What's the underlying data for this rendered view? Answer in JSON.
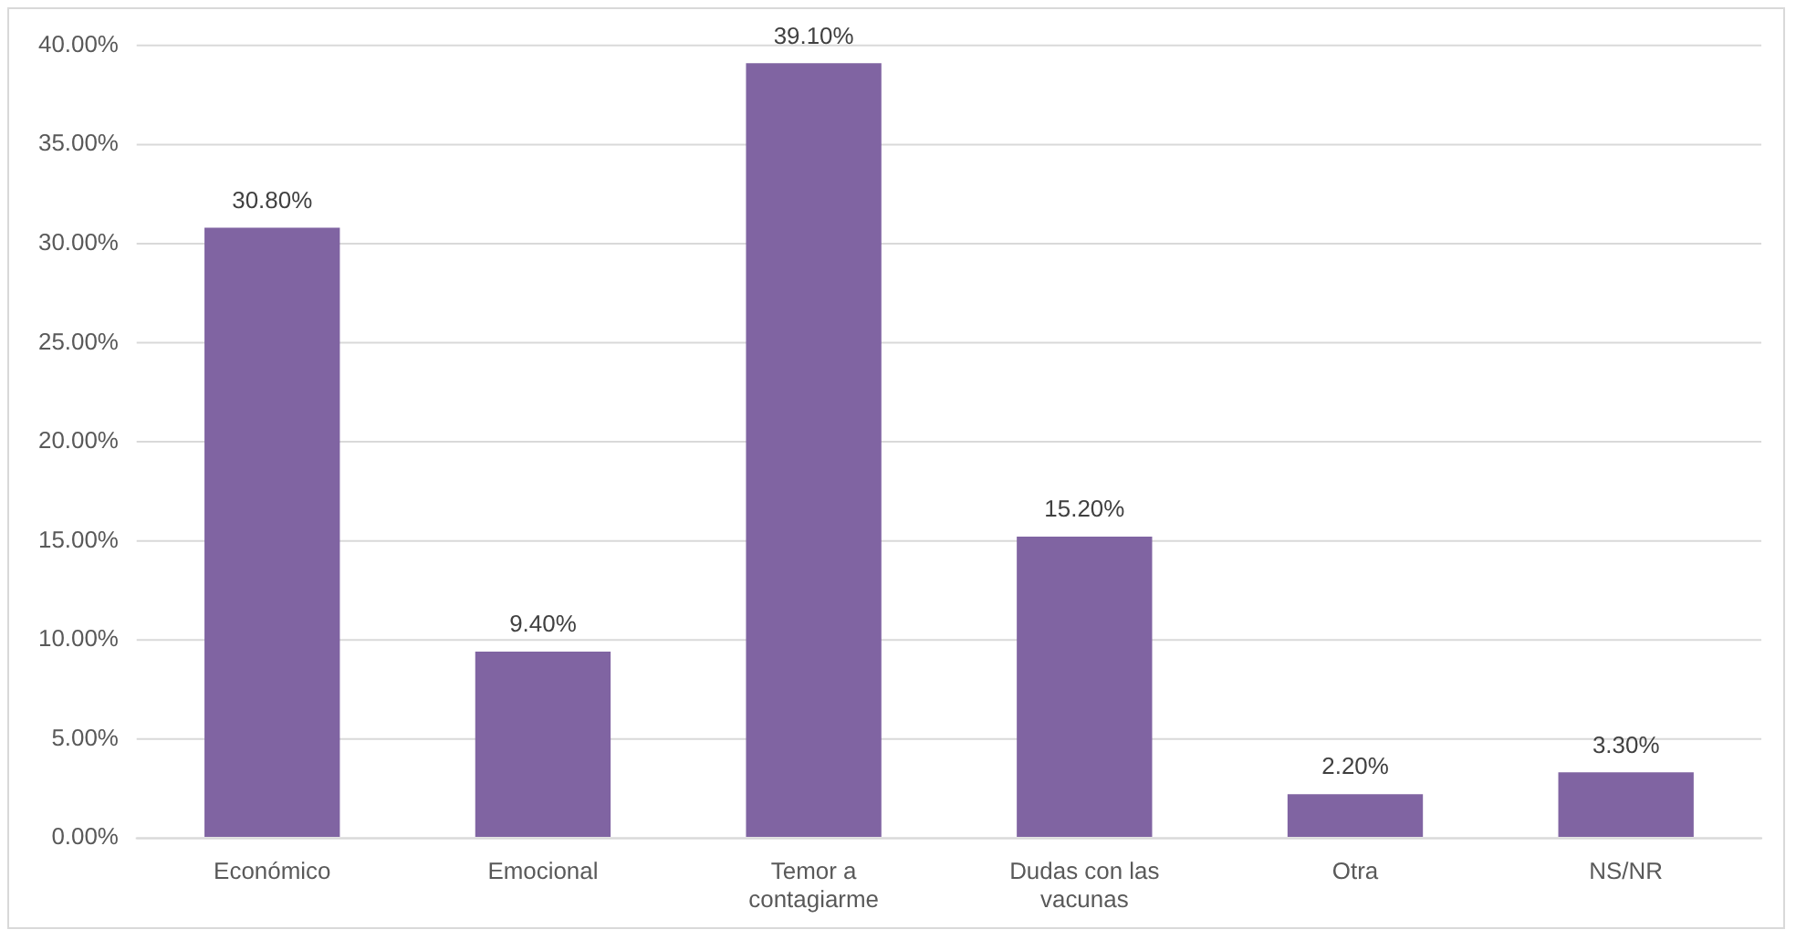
{
  "chart_data": {
    "type": "bar",
    "categories": [
      "Económico",
      "Emocional",
      "Temor a contagiarme",
      "Dudas con las vacunas",
      "Otra",
      "NS/NR"
    ],
    "values": [
      30.8,
      9.4,
      39.1,
      15.2,
      2.2,
      3.3
    ],
    "value_labels": [
      "30.80%",
      "9.40%",
      "39.10%",
      "15.20%",
      "2.20%",
      "3.30%"
    ],
    "color": "#8064a2",
    "ylim": [
      0,
      40
    ],
    "yticks": [
      {
        "value": 0,
        "label": "0.00%"
      },
      {
        "value": 5,
        "label": "5.00%"
      },
      {
        "value": 10,
        "label": "10.00%"
      },
      {
        "value": 15,
        "label": "15.00%"
      },
      {
        "value": 20,
        "label": "20.00%"
      },
      {
        "value": 25,
        "label": "25.00%"
      },
      {
        "value": 30,
        "label": "30.00%"
      },
      {
        "value": 35,
        "label": "35.00%"
      },
      {
        "value": 40,
        "label": "40.00%"
      }
    ],
    "grid": "y",
    "legend": false
  }
}
